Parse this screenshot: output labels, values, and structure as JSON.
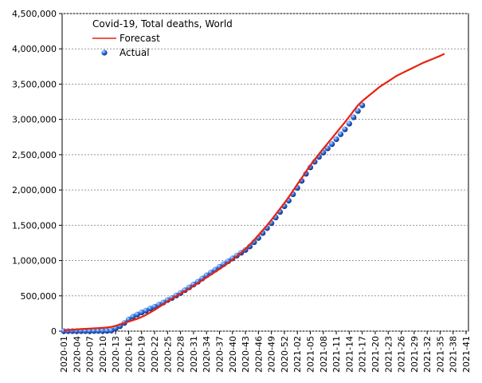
{
  "chart_data": {
    "type": "line",
    "title": "Covid-19, Total deaths, World",
    "categories": [
      "2020-01",
      null,
      null,
      "2020-04",
      null,
      null,
      "2020-07",
      null,
      null,
      "2020-10",
      null,
      null,
      "2020-13",
      null,
      null,
      "2020-16",
      null,
      null,
      "2020-19",
      null,
      null,
      "2020-22",
      null,
      null,
      "2020-25",
      null,
      null,
      "2020-28",
      null,
      null,
      "2020-31",
      null,
      null,
      "2020-34",
      null,
      null,
      "2020-37",
      null,
      null,
      "2020-40",
      null,
      null,
      "2020-43",
      null,
      null,
      "2020-46",
      null,
      null,
      "2020-49",
      null,
      null,
      "2020-52",
      null,
      null,
      "2021-02",
      null,
      null,
      "2021-05",
      null,
      null,
      "2021-08",
      null,
      null,
      "2021-11",
      null,
      null,
      "2021-14",
      null,
      null,
      "2021-17",
      null,
      null,
      "2021-20",
      null,
      null,
      "2021-23",
      null,
      null,
      "2021-26",
      null,
      null,
      "2021-29",
      null,
      null,
      "2021-32",
      null,
      null,
      "2021-35",
      null,
      null,
      "2021-38",
      null,
      null,
      "2021-41"
    ],
    "series": [
      {
        "name": "Forecast",
        "color": "#e8210f",
        "style": "line",
        "values": [
          10000,
          15000,
          20000,
          25000,
          30000,
          33000,
          36000,
          40000,
          43000,
          47000,
          52000,
          60000,
          75000,
          95000,
          115000,
          135000,
          155000,
          175000,
          200000,
          230000,
          265000,
          300000,
          340000,
          380000,
          420000,
          460000,
          495000,
          530000,
          565000,
          600000,
          640000,
          680000,
          720000,
          760000,
          800000,
          840000,
          880000,
          920000,
          965000,
          1010000,
          1060000,
          1110000,
          1165000,
          1225000,
          1290000,
          1360000,
          1430000,
          1500000,
          1575000,
          1655000,
          1735000,
          1815000,
          1900000,
          1990000,
          2080000,
          2170000,
          2260000,
          2350000,
          2430000,
          2510000,
          2585000,
          2660000,
          2735000,
          2810000,
          2885000,
          2960000,
          3040000,
          3120000,
          3200000,
          3260000,
          3310000,
          3360000,
          3410000,
          3460000,
          3500000,
          3540000,
          3580000,
          3620000,
          3650000,
          3680000,
          3710000,
          3740000,
          3770000,
          3800000,
          3825000,
          3850000,
          3875000,
          3900000,
          3930000,
          null,
          null,
          null,
          null,
          null
        ]
      },
      {
        "name": "Actual",
        "color": "#1f5fd6",
        "style": "marker",
        "values": [
          0,
          0,
          0,
          0,
          100,
          300,
          1000,
          1800,
          2700,
          3100,
          4000,
          8000,
          40000,
          70000,
          115000,
          165000,
          205000,
          235000,
          265000,
          290000,
          320000,
          345000,
          375000,
          405000,
          440000,
          470000,
          505000,
          540000,
          580000,
          620000,
          660000,
          700000,
          745000,
          790000,
          830000,
          870000,
          910000,
          950000,
          990000,
          1030000,
          1070000,
          1110000,
          1150000,
          1200000,
          1260000,
          1320000,
          1390000,
          1460000,
          1530000,
          1610000,
          1690000,
          1770000,
          1850000,
          1940000,
          2030000,
          2130000,
          2230000,
          2320000,
          2400000,
          2470000,
          2530000,
          2590000,
          2650000,
          2720000,
          2790000,
          2860000,
          2940000,
          3030000,
          3120000,
          3200000,
          null,
          null,
          null,
          null,
          null,
          null,
          null,
          null,
          null,
          null,
          null,
          null,
          null,
          null,
          null,
          null,
          null,
          null,
          null,
          null,
          null,
          null,
          null,
          null
        ]
      }
    ],
    "ylim": [
      0,
      4500000
    ],
    "yticks": [
      0,
      {
        "value": 500000,
        "label": "500,000"
      },
      {
        "value": 1000000,
        "label": "1,000,000"
      },
      {
        "value": 1500000,
        "label": "1,500,000"
      },
      {
        "value": 2000000,
        "label": "2,000,000"
      },
      {
        "value": 2500000,
        "label": "2,500,000"
      },
      {
        "value": 3000000,
        "label": "3,000,000"
      },
      {
        "value": 3500000,
        "label": "3,500,000"
      },
      {
        "value": 4000000,
        "label": "4,000,000"
      },
      {
        "value": 4500000,
        "label": "4,500,000"
      }
    ],
    "grid": true,
    "legend": "upper left"
  }
}
